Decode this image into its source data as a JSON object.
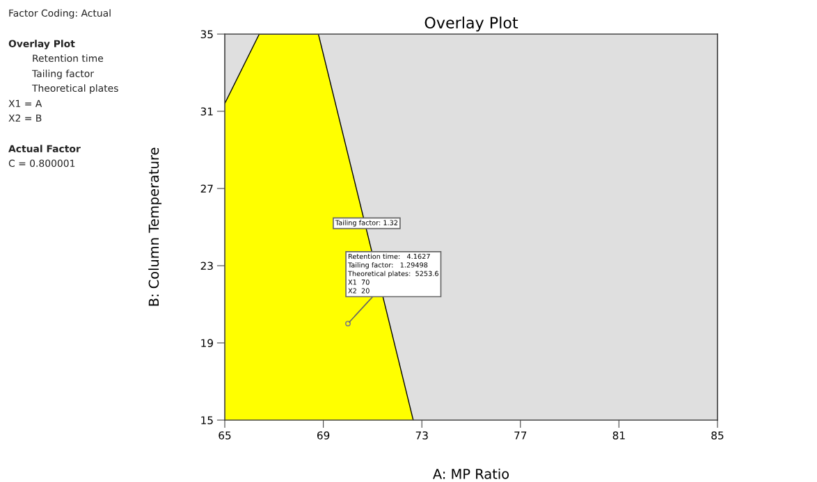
{
  "chart_data": {
    "type": "area",
    "title": "Overlay Plot",
    "xlabel": "A: MP Ratio",
    "ylabel": "B: Column Temperature",
    "series": [
      {
        "color": "#ffff00",
        "x": [
          65,
          66.4,
          68.8,
          72.65
        ],
        "values": [
          31.4,
          35,
          35,
          15
        ]
      },
      {
        "type": "scatter",
        "color": "#808080",
        "x": [
          70
        ],
        "values": [
          20
        ],
        "marker": "circle"
      }
    ],
    "xlim": [
      65,
      85
    ],
    "xticks": [
      65,
      69,
      73,
      77,
      81,
      85
    ],
    "ylim": [
      15,
      35
    ],
    "yticks": [
      15,
      19,
      23,
      27,
      31,
      35
    ],
    "bands": [
      {
        "axis": "y",
        "from": 15,
        "to": 35,
        "color": "#dfdfdf"
      }
    ],
    "grid": false,
    "legend": false,
    "annotations": [
      "Factor Coding: Actual",
      "Overlay Plot",
      "Retention time",
      "Tailing factor",
      "Theoretical plates",
      "X1 = A",
      "X2 = B",
      "Actual Factor",
      "C = 0.800001",
      {
        "text": "Tailing factor: 1.32",
        "x": 70.76,
        "y": 25.2
      },
      {
        "text": "Retention time:   4.1627\nTailing factor:   1.29498\nTheoretical plates:  5253.6\nX1  70\nX2  20",
        "x": 70,
        "y": 20
      }
    ]
  }
}
